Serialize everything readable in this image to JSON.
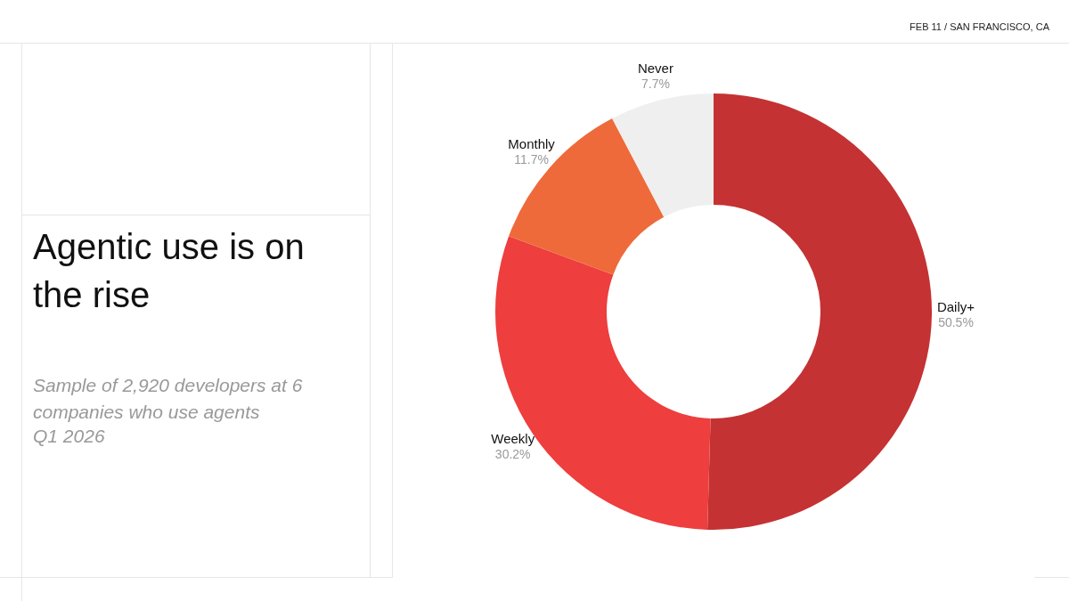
{
  "chart_data": {
    "type": "donut",
    "title": "Agentic use is on the rise",
    "subtitle": "Sample of 2,920 developers at 6 companies who use agents",
    "annotations": [
      "Q1 2026",
      "FEB 11 / SAN FRANCISCO, CA"
    ],
    "categories": [
      "Daily+",
      "Weekly",
      "Monthly",
      "Never"
    ],
    "values": [
      50.5,
      30.2,
      11.7,
      7.7
    ],
    "colors": [
      "#c53233",
      "#ee3e3e",
      "#ef6a3a",
      "#efefef"
    ],
    "value_labels": [
      "50.5%",
      "30.2%",
      "11.7%",
      "7.7%"
    ]
  }
}
